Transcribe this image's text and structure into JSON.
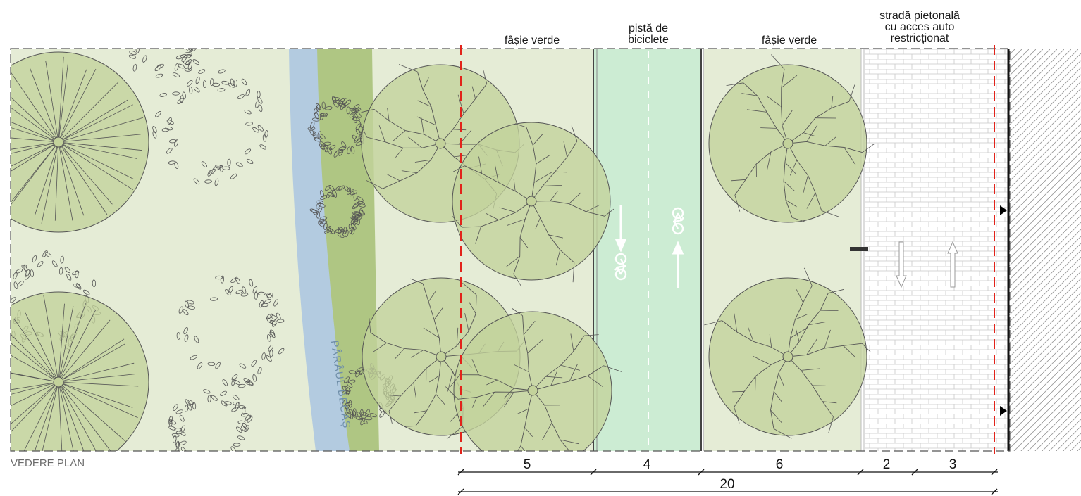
{
  "colors": {
    "green_bg": "#e5ecd6",
    "canopy_fill": "#c3d29b",
    "stream_bank": "#a9c27a",
    "stream_water": "#b3cbe0",
    "bike_lane": "#ccecd3",
    "paving": "#ffffff",
    "limit_line": "#e2231a",
    "outline": "#555555"
  },
  "labels": {
    "green_strip_1": "fâșie verde",
    "bike_lane": "pistă de biciclete",
    "green_strip_2": "fâșie verde",
    "street": "stradă pietonală cu acces auto restricționat",
    "stream": "PÂRÂUL BECAȘ",
    "caption": "VEDERE PLAN"
  },
  "dimensions": {
    "segments": [
      "5",
      "4",
      "6",
      "2",
      "3"
    ],
    "total": "20"
  },
  "icons": [
    "bicycle-icon",
    "arrow-down-icon",
    "arrow-up-icon",
    "direction-marker-icon"
  ]
}
